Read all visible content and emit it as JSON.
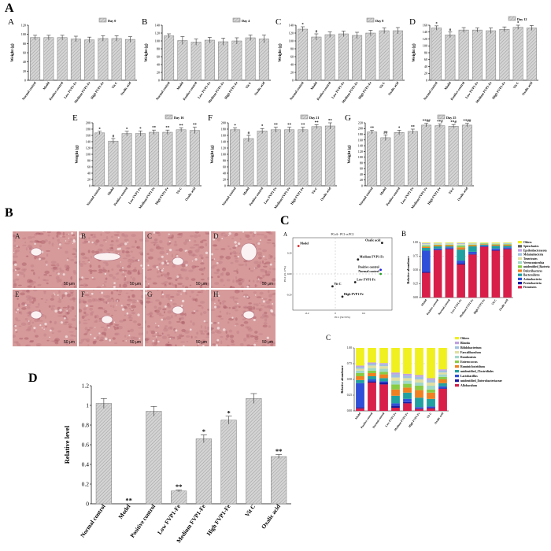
{
  "figure": {
    "panel_A_label": "A",
    "panel_B_label": "B",
    "panel_C_label": "C",
    "panel_D_label": "D"
  },
  "colors": {
    "bar_fill": "#cfcfcf",
    "bar_stroke": "#777777",
    "hatch": "#9a9a9a",
    "tissue_base": "#d69a9a",
    "tissue_dark": "#a85a66"
  },
  "chart_data": [
    {
      "id": "weight-a",
      "sub_label": "A",
      "type": "bar",
      "legend": "Day 0",
      "ylabel": "Weight (g)",
      "ylim": [
        0,
        120
      ],
      "yticks": [
        0,
        20,
        40,
        60,
        80,
        100,
        120
      ],
      "categories": [
        "Normal control",
        "Model",
        "Positive control",
        "Low FVP1-Fe",
        "Medium FVP1-Fe",
        "High FVP1-Fe",
        "Vit C",
        "Oxalic acid"
      ],
      "values": [
        93,
        93,
        93,
        90,
        88,
        91,
        91,
        89
      ],
      "errors": [
        5,
        5,
        5,
        6,
        6,
        6,
        6,
        6
      ],
      "annotations": [
        "",
        "",
        "",
        "",
        "",
        "",
        "",
        ""
      ]
    },
    {
      "id": "weight-b",
      "sub_label": "B",
      "type": "bar",
      "legend": "Day 4",
      "ylabel": "Weight (g)",
      "ylim": [
        0,
        140
      ],
      "yticks": [
        0,
        20,
        40,
        60,
        80,
        100,
        120,
        140
      ],
      "categories": [
        "Normal control",
        "Model",
        "Positive control",
        "Low FVP1-Fe",
        "Medium FVP1-Fe",
        "High FVP1-Fe",
        "Vit C",
        "Oxalic acid"
      ],
      "values": [
        113,
        101,
        97,
        102,
        98,
        100,
        108,
        105
      ],
      "errors": [
        5,
        10,
        8,
        7,
        9,
        8,
        7,
        10
      ],
      "annotations": [
        "",
        "",
        "",
        "",
        "",
        "",
        "",
        ""
      ]
    },
    {
      "id": "weight-c",
      "sub_label": "C",
      "type": "bar",
      "legend": "Day 8",
      "ylabel": "Weight (g)",
      "ylim": [
        0,
        140
      ],
      "yticks": [
        0,
        20,
        40,
        60,
        80,
        100,
        120,
        140
      ],
      "categories": [
        "Normal control",
        "Model",
        "Positive control",
        "Low FVP1-Fe",
        "Medium FVP1-Fe",
        "High FVP1-Fe",
        "Vit C",
        "Oxalic acid"
      ],
      "values": [
        130,
        110,
        116,
        118,
        114,
        120,
        126,
        126
      ],
      "errors": [
        6,
        8,
        7,
        7,
        8,
        7,
        7,
        8
      ],
      "annotations": [
        "*",
        "#",
        "",
        "",
        "",
        "",
        "",
        ""
      ]
    },
    {
      "id": "weight-d",
      "sub_label": "D",
      "type": "bar",
      "legend": "Day 12",
      "ylabel": "Weight (g)",
      "ylim": [
        0,
        160
      ],
      "yticks": [
        0,
        20,
        40,
        60,
        80,
        100,
        120,
        140,
        160
      ],
      "categories": [
        "Normal control",
        "Model",
        "Positive control",
        "Low FVP1-Fe",
        "Medium FVP1-Fe",
        "High FVP1-Fe",
        "Vit C",
        "Oxalic acid"
      ],
      "values": [
        152,
        132,
        146,
        146,
        144,
        148,
        154,
        152
      ],
      "errors": [
        6,
        8,
        7,
        6,
        8,
        7,
        6,
        7
      ],
      "annotations": [
        "*",
        "#",
        "",
        "",
        "",
        "",
        "*",
        ""
      ]
    },
    {
      "id": "weight-e",
      "sub_label": "E",
      "type": "bar",
      "legend": "Day 16",
      "ylabel": "Weight (g)",
      "ylim": [
        0,
        200
      ],
      "yticks": [
        0,
        20,
        40,
        60,
        80,
        100,
        120,
        140,
        160,
        180,
        200
      ],
      "categories": [
        "Normal control",
        "Model",
        "Positive control",
        "Low FVP1-Fe",
        "Medium FVP1-Fe",
        "High FVP1-Fe",
        "Vit C",
        "Oxalic acid"
      ],
      "values": [
        168,
        142,
        166,
        166,
        170,
        170,
        178,
        176
      ],
      "errors": [
        5,
        8,
        7,
        8,
        7,
        7,
        6,
        10
      ],
      "annotations": [
        "*",
        "#",
        "*",
        "*",
        "**",
        "**",
        "**",
        "**"
      ]
    },
    {
      "id": "weight-f",
      "sub_label": "F",
      "type": "bar",
      "legend": "Day 21",
      "ylabel": "Weight (g)",
      "ylim": [
        0,
        200
      ],
      "yticks": [
        0,
        20,
        40,
        60,
        80,
        100,
        120,
        140,
        160,
        180,
        200
      ],
      "categories": [
        "Normal control",
        "Model",
        "Positive control",
        "Low FVP1-Fe",
        "Medium FVP1-Fe",
        "High FVP1-Fe",
        "Vit C",
        "Oxalic acid"
      ],
      "values": [
        178,
        150,
        174,
        178,
        178,
        178,
        188,
        190
      ],
      "errors": [
        6,
        10,
        8,
        8,
        8,
        8,
        6,
        10
      ],
      "annotations": [
        "*",
        "#",
        "*",
        "**",
        "**",
        "**",
        "**",
        "**"
      ]
    },
    {
      "id": "weight-g",
      "sub_label": "G",
      "type": "bar",
      "legend": "Day 25",
      "ylabel": "Weight (g)",
      "ylim": [
        0,
        220
      ],
      "yticks": [
        0,
        20,
        40,
        60,
        80,
        100,
        120,
        140,
        160,
        180,
        200,
        220
      ],
      "categories": [
        "Normal control",
        "Model",
        "Positive control",
        "Low FVP1-Fe",
        "Medium FVP1-Fe",
        "High FVP1-Fe",
        "Vit C",
        "Oxalic acid"
      ],
      "values": [
        188,
        168,
        186,
        190,
        212,
        210,
        208,
        212
      ],
      "errors": [
        6,
        10,
        8,
        8,
        6,
        6,
        6,
        6
      ],
      "annotations": [
        "**",
        "##",
        "*",
        "**",
        "**##",
        "**#",
        "**#",
        "**##"
      ]
    },
    {
      "id": "pcoa",
      "sub_label": "A",
      "type": "scatter",
      "title": "PCoA - PC1 vs PC2",
      "xlabel": "PC1 (52.53%)",
      "ylabel": "PC2 (21.17%)",
      "xlim": [
        -0.3,
        0.4
      ],
      "ylim": [
        -0.35,
        0.35
      ],
      "xticks": [
        -0.2,
        0.0,
        0.2
      ],
      "yticks": [
        -0.2,
        0.0,
        0.2
      ],
      "points": [
        {
          "label": "Model",
          "x": -0.26,
          "y": 0.27,
          "color": "#e02020"
        },
        {
          "label": "Oxalic acid",
          "x": 0.33,
          "y": 0.3,
          "color": "#202020"
        },
        {
          "label": "Medium FVP1-Fe",
          "x": 0.16,
          "y": 0.14,
          "color": "#202020"
        },
        {
          "label": "Positive control",
          "x": 0.32,
          "y": 0.04,
          "color": "#2020e0"
        },
        {
          "label": "Normal control",
          "x": 0.32,
          "y": 0.0,
          "color": "#20a020"
        },
        {
          "label": "Low FVP1-Fe",
          "x": 0.14,
          "y": -0.08,
          "color": "#202020"
        },
        {
          "label": "Vit C",
          "x": -0.02,
          "y": -0.12,
          "color": "#202020"
        },
        {
          "label": "High FVP1-Fe",
          "x": 0.05,
          "y": -0.22,
          "color": "#202020"
        }
      ],
      "legend": [
        "Model",
        "Positive control",
        "Normal control",
        "Vit C",
        "Low FVP1-Fe",
        "Medium FVP1-Fe",
        "High FVP1-Fe",
        "Oxalic acid"
      ]
    },
    {
      "id": "phylum",
      "sub_label": "B",
      "type": "bar",
      "stacked": true,
      "ylabel": "Relative abundance",
      "ylim": [
        0,
        1
      ],
      "yticks": [
        0.0,
        0.25,
        0.5,
        0.75,
        1.0
      ],
      "categories": [
        "Model",
        "Positive control",
        "Normal control",
        "Low FVP1-Fe",
        "Medium FVP1-Fe",
        "High FVP1-Fe",
        "Vit C",
        "Oxalic acid"
      ],
      "series": [
        {
          "name": "Firmicutes",
          "color": "#d81f4a",
          "values": [
            0.45,
            0.86,
            0.88,
            0.6,
            0.78,
            0.92,
            0.85,
            0.88
          ]
        },
        {
          "name": "Proteobacteria",
          "color": "#1a1aa0",
          "values": [
            0.02,
            0.01,
            0.01,
            0.02,
            0.01,
            0.01,
            0.01,
            0.01
          ]
        },
        {
          "name": "Actinobacteria",
          "color": "#2f4fd8",
          "values": [
            0.38,
            0.02,
            0.02,
            0.05,
            0.04,
            0.01,
            0.03,
            0.02
          ]
        },
        {
          "name": "Bacteroidetes",
          "color": "#20a0a0",
          "values": [
            0.05,
            0.04,
            0.02,
            0.2,
            0.1,
            0.02,
            0.05,
            0.03
          ]
        },
        {
          "name": "Deferribacteres",
          "color": "#f08020",
          "values": [
            0.02,
            0.02,
            0.02,
            0.04,
            0.02,
            0.01,
            0.02,
            0.02
          ]
        },
        {
          "name": "unidentified_Bacteria",
          "color": "#88cc44",
          "values": [
            0.02,
            0.01,
            0.01,
            0.03,
            0.01,
            0.01,
            0.01,
            0.01
          ]
        },
        {
          "name": "Verrucomicrobia",
          "color": "#a0d8c8",
          "values": [
            0.02,
            0.01,
            0.01,
            0.02,
            0.01,
            0.01,
            0.01,
            0.01
          ]
        },
        {
          "name": "Tenericutes",
          "color": "#e0e0a0",
          "values": [
            0.01,
            0.01,
            0.01,
            0.01,
            0.01,
            0.0,
            0.01,
            0.0
          ]
        },
        {
          "name": "Melainabacteria",
          "color": "#a0c0e0",
          "values": [
            0.01,
            0.01,
            0.01,
            0.01,
            0.01,
            0.0,
            0.0,
            0.01
          ]
        },
        {
          "name": "Epsilonbacteraeota",
          "color": "#c0a0e0",
          "values": [
            0.01,
            0.0,
            0.0,
            0.01,
            0.0,
            0.0,
            0.0,
            0.0
          ]
        },
        {
          "name": "Spirochaetes",
          "color": "#606060",
          "values": [
            0.0,
            0.0,
            0.0,
            0.0,
            0.0,
            0.0,
            0.0,
            0.0
          ]
        },
        {
          "name": "Others",
          "color": "#f0f020",
          "values": [
            0.01,
            0.01,
            0.01,
            0.01,
            0.01,
            0.01,
            0.01,
            0.01
          ]
        }
      ]
    },
    {
      "id": "genus",
      "sub_label": "C",
      "type": "bar",
      "stacked": true,
      "ylabel": "Relative abundance",
      "ylim": [
        0,
        1
      ],
      "yticks": [
        0.0,
        0.25,
        0.5,
        0.75,
        1.0
      ],
      "categories": [
        "Model",
        "Positive control",
        "Normal control",
        "Low FVP1-Fe",
        "Medium FVP1-Fe",
        "High FVP1-Fe",
        "Vit C",
        "Oxalic acid"
      ],
      "series": [
        {
          "name": "Allobaculum",
          "color": "#d81f4a",
          "values": [
            0.04,
            0.45,
            0.42,
            0.05,
            0.12,
            0.03,
            0.04,
            0.35
          ]
        },
        {
          "name": "unidentified_Enterobacteriaceae",
          "color": "#1a1aa0",
          "values": [
            0.02,
            0.02,
            0.03,
            0.03,
            0.02,
            0.01,
            0.01,
            0.01
          ]
        },
        {
          "name": "Lactobacillus",
          "color": "#2f4fd8",
          "values": [
            0.38,
            0.03,
            0.02,
            0.04,
            0.05,
            0.02,
            0.02,
            0.03
          ]
        },
        {
          "name": "unidentified_Clostridiales",
          "color": "#20a0a0",
          "values": [
            0.05,
            0.05,
            0.05,
            0.12,
            0.1,
            0.15,
            0.12,
            0.05
          ]
        },
        {
          "name": "Ruminiclostridium",
          "color": "#f08020",
          "values": [
            0.06,
            0.05,
            0.06,
            0.1,
            0.08,
            0.12,
            0.1,
            0.06
          ]
        },
        {
          "name": "Enterococcus",
          "color": "#88cc44",
          "values": [
            0.05,
            0.04,
            0.04,
            0.08,
            0.06,
            0.07,
            0.05,
            0.04
          ]
        },
        {
          "name": "Romboutsia",
          "color": "#a0d8c8",
          "values": [
            0.04,
            0.04,
            0.05,
            0.06,
            0.05,
            0.05,
            0.06,
            0.04
          ]
        },
        {
          "name": "Faecalibaculum",
          "color": "#e0e0a0",
          "values": [
            0.03,
            0.04,
            0.04,
            0.05,
            0.04,
            0.05,
            0.05,
            0.03
          ]
        },
        {
          "name": "Bifidobacterium",
          "color": "#a0c0e0",
          "values": [
            0.03,
            0.03,
            0.03,
            0.05,
            0.04,
            0.04,
            0.04,
            0.03
          ]
        },
        {
          "name": "Blautia",
          "color": "#c0a0e0",
          "values": [
            0.02,
            0.02,
            0.02,
            0.03,
            0.03,
            0.03,
            0.03,
            0.02
          ]
        },
        {
          "name": "Others",
          "color": "#f0f020",
          "values": [
            0.28,
            0.23,
            0.24,
            0.39,
            0.41,
            0.43,
            0.48,
            0.34
          ]
        }
      ]
    },
    {
      "id": "relative-level",
      "type": "bar",
      "ylabel": "Relative level",
      "ylim": [
        0,
        1.2
      ],
      "yticks": [
        0.0,
        0.2,
        0.4,
        0.6,
        0.8,
        1.0,
        1.2
      ],
      "categories": [
        "Normal control",
        "Model",
        "Positive control",
        "Low FVP1-Fe",
        "Medium FVP1-Fe",
        "High FVP1-Fe",
        "Vit C",
        "Oxalic acid"
      ],
      "values": [
        1.02,
        0.0,
        0.94,
        0.13,
        0.66,
        0.85,
        1.07,
        0.48
      ],
      "errors": [
        0.05,
        0.0,
        0.05,
        0.01,
        0.04,
        0.04,
        0.05,
        0.02
      ],
      "annotations": [
        "",
        "**",
        "",
        "**",
        "*",
        "*",
        "",
        "**"
      ]
    }
  ],
  "histology": {
    "panels": [
      {
        "label": "A",
        "scale": "50 μm"
      },
      {
        "label": "B",
        "scale": "50 μm"
      },
      {
        "label": "C",
        "scale": "50 μm"
      },
      {
        "label": "D",
        "scale": "50 μm"
      },
      {
        "label": "E",
        "scale": "50 μm"
      },
      {
        "label": "F",
        "scale": "50 μm"
      },
      {
        "label": "G",
        "scale": "50 μm"
      },
      {
        "label": "H",
        "scale": "50 μm"
      }
    ]
  }
}
